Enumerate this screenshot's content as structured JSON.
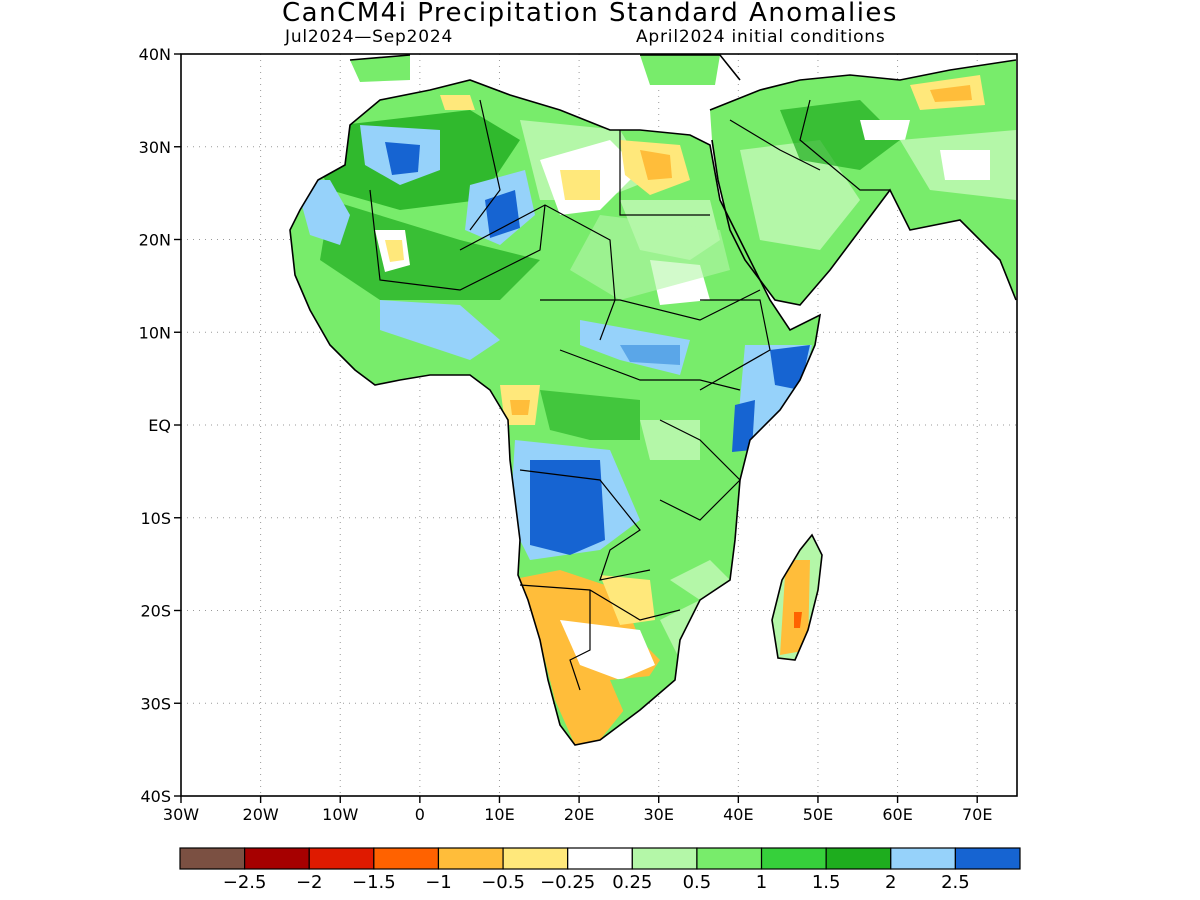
{
  "title": "CanCM4i Precipitation Standard Anomalies",
  "subtitle_left": "Jul2024—Sep2024",
  "subtitle_right": "April2024 initial conditions",
  "map": {
    "lon_range": [
      -30,
      75
    ],
    "lat_range": [
      -40,
      40
    ],
    "lat_ticks": [
      {
        "value": 40,
        "label": "40N"
      },
      {
        "value": 30,
        "label": "30N"
      },
      {
        "value": 20,
        "label": "20N"
      },
      {
        "value": 10,
        "label": "10N"
      },
      {
        "value": 0,
        "label": "EQ"
      },
      {
        "value": -10,
        "label": "10S"
      },
      {
        "value": -20,
        "label": "20S"
      },
      {
        "value": -30,
        "label": "30S"
      },
      {
        "value": -40,
        "label": "40S"
      }
    ],
    "lon_ticks": [
      {
        "value": -30,
        "label": "30W"
      },
      {
        "value": -20,
        "label": "20W"
      },
      {
        "value": -10,
        "label": "10W"
      },
      {
        "value": 0,
        "label": "0"
      },
      {
        "value": 10,
        "label": "10E"
      },
      {
        "value": 20,
        "label": "20E"
      },
      {
        "value": 30,
        "label": "30E"
      },
      {
        "value": 40,
        "label": "40E"
      },
      {
        "value": 50,
        "label": "50E"
      },
      {
        "value": 60,
        "label": "60E"
      },
      {
        "value": 70,
        "label": "70E"
      }
    ]
  },
  "colorbar": {
    "colors": [
      "#7b5042",
      "#a60000",
      "#df1a00",
      "#ff6200",
      "#ffbd3a",
      "#ffe87b",
      "#ffffff",
      "#b4f7a8",
      "#78ec6b",
      "#36d03b",
      "#1ead1e",
      "#96d2fa",
      "#1664d2"
    ],
    "labels": [
      "−2.5",
      "−2",
      "−1.5",
      "−1",
      "−0.5",
      "−0.25",
      "0.25",
      "0.5",
      "1",
      "1.5",
      "2",
      "2.5"
    ]
  },
  "colors": {
    "light_green": "#b4f7a8",
    "green": "#78ec6b",
    "mid_green": "#36d03b",
    "dark_green": "#1ead1e",
    "light_blue": "#96d2fa",
    "blue": "#1664d2",
    "light_yellow": "#ffe87b",
    "orange_yellow": "#ffbd3a",
    "orange": "#ff6200"
  }
}
